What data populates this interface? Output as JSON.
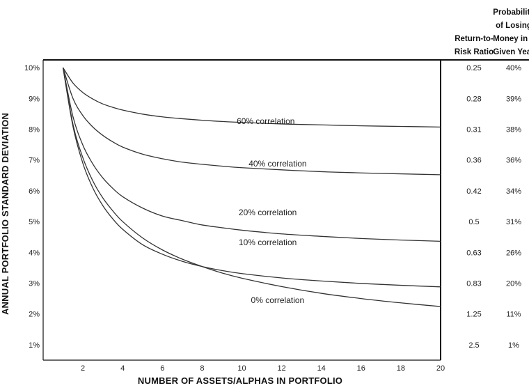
{
  "chart_data": {
    "type": "line",
    "xlabel": "NUMBER OF ASSETS/ALPHAS IN PORTFOLIO",
    "ylabel": "ANNUAL PORTFOLIO STANDARD DEVIATION",
    "xlim": [
      0,
      20
    ],
    "ylim": [
      0.5,
      10.25
    ],
    "x_ticks": [
      "2",
      "4",
      "6",
      "8",
      "10",
      "12",
      "14",
      "16",
      "18",
      "20"
    ],
    "x_tick_values": [
      2,
      4,
      6,
      8,
      10,
      12,
      14,
      16,
      18,
      20
    ],
    "y_ticks": [
      "10%",
      "9%",
      "8%",
      "7%",
      "6%",
      "5%",
      "4%",
      "3%",
      "2%",
      "1%"
    ],
    "y_tick_values": [
      10,
      9,
      8,
      7,
      6,
      5,
      4,
      3,
      2,
      1
    ],
    "x": [
      1,
      1.5,
      2,
      2.5,
      3,
      3.5,
      4,
      5,
      6,
      7,
      8,
      9,
      10,
      12,
      14,
      16,
      18,
      20
    ],
    "series": [
      {
        "name": "60% correlation",
        "label_x": 11.2,
        "label_y": 8.17,
        "values": [
          10,
          9.5,
          9.19,
          8.98,
          8.82,
          8.71,
          8.62,
          8.49,
          8.4,
          8.34,
          8.29,
          8.25,
          8.22,
          8.17,
          8.14,
          8.11,
          8.09,
          8.07
        ]
      },
      {
        "name": "40% correlation",
        "label_x": 11.8,
        "label_y": 6.79,
        "values": [
          10,
          9.0,
          8.44,
          8.07,
          7.8,
          7.59,
          7.42,
          7.19,
          7.04,
          6.93,
          6.86,
          6.8,
          6.75,
          6.68,
          6.62,
          6.58,
          6.55,
          6.52
        ]
      },
      {
        "name": "20% correlation",
        "label_x": 11.3,
        "label_y": 5.21,
        "values": [
          10,
          8.41,
          7.48,
          6.87,
          6.42,
          6.08,
          5.81,
          5.44,
          5.18,
          5.03,
          4.89,
          4.8,
          4.72,
          4.6,
          4.52,
          4.45,
          4.4,
          4.36
        ]
      },
      {
        "name": "10% correlation",
        "label_x": 11.3,
        "label_y": 4.23,
        "values": [
          10,
          8.09,
          6.89,
          6.09,
          5.52,
          5.09,
          4.75,
          4.25,
          3.94,
          3.71,
          3.54,
          3.41,
          3.31,
          3.17,
          3.07,
          2.99,
          2.93,
          2.88
        ]
      },
      {
        "name": "0% correlation",
        "label_x": 11.8,
        "label_y": 2.35,
        "values": [
          10,
          8.16,
          7.07,
          6.32,
          5.77,
          5.35,
          5.0,
          4.47,
          4.08,
          3.78,
          3.54,
          3.33,
          3.16,
          2.89,
          2.67,
          2.5,
          2.36,
          2.24
        ]
      }
    ],
    "side_table": {
      "col1_header": [
        "Return-to-",
        "Risk Ratio"
      ],
      "col2_header": [
        "Probability",
        "of Losing",
        "Money in a",
        "Given Year"
      ],
      "rows": [
        {
          "std": 10,
          "ratio": "0.25",
          "prob": "40%"
        },
        {
          "std": 9,
          "ratio": "0.28",
          "prob": "39%"
        },
        {
          "std": 8,
          "ratio": "0.31",
          "prob": "38%"
        },
        {
          "std": 7,
          "ratio": "0.36",
          "prob": "36%"
        },
        {
          "std": 6,
          "ratio": "0.42",
          "prob": "34%"
        },
        {
          "std": 5,
          "ratio": "0.5",
          "prob": "31%"
        },
        {
          "std": 4,
          "ratio": "0.63",
          "prob": "26%"
        },
        {
          "std": 3,
          "ratio": "0.83",
          "prob": "20%"
        },
        {
          "std": 2,
          "ratio": "1.25",
          "prob": "11%"
        },
        {
          "std": 1,
          "ratio": "2.5",
          "prob": "1%"
        }
      ]
    },
    "grid": false,
    "legend": "inline-labels"
  }
}
